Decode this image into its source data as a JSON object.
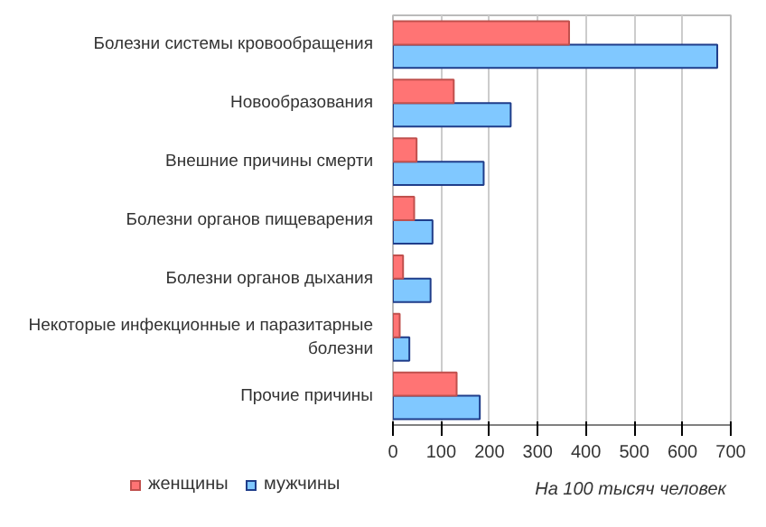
{
  "chart_data": {
    "type": "bar",
    "orientation": "horizontal",
    "categories": [
      "Болезни системы кровообращения",
      "Новообразования",
      "Внешние причины смерти",
      "Болезни органов пищеварения",
      "Болезни органов дыхания",
      "Некоторые инфекционные и паразитарные болезни",
      "Прочие причины"
    ],
    "series": [
      {
        "name": "женщины",
        "color": "#ff7474",
        "values": [
          365,
          126,
          49,
          44,
          21,
          14,
          132
        ]
      },
      {
        "name": "мужчины",
        "color": "#80c8ff",
        "values": [
          672,
          244,
          188,
          82,
          78,
          34,
          180
        ]
      }
    ],
    "xlim": [
      0,
      700
    ],
    "xticks": [
      0,
      100,
      200,
      300,
      400,
      500,
      600,
      700
    ],
    "grid": "x",
    "legend": "bottom left",
    "annotations": [
      "На 100 тысяч человек"
    ]
  }
}
